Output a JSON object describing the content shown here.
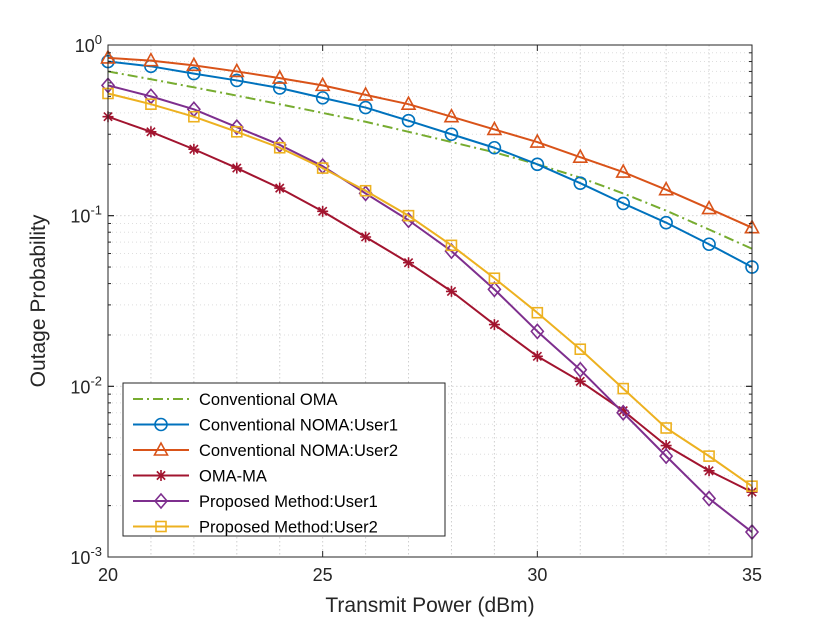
{
  "chart_data": {
    "type": "line",
    "title": "",
    "xlabel": "Transmit Power (dBm)",
    "ylabel": "Outage Probability",
    "xlim": [
      20,
      35
    ],
    "ylim": [
      0.001,
      1
    ],
    "yscale": "log",
    "grid": true,
    "legend_position": "bottom-left",
    "x_ticks": [
      20,
      25,
      30,
      35
    ],
    "x_tick_labels": [
      "20",
      "25",
      "30",
      "35"
    ],
    "y_ticks": [
      0.001,
      0.01,
      0.1,
      1
    ],
    "y_tick_labels": [
      {
        "base": "10",
        "exp": "-3"
      },
      {
        "base": "10",
        "exp": "-2"
      },
      {
        "base": "10",
        "exp": "-1"
      },
      {
        "base": "10",
        "exp": "0"
      }
    ],
    "x": [
      20,
      21,
      22,
      23,
      24,
      25,
      26,
      27,
      28,
      29,
      30,
      31,
      32,
      33,
      34,
      35
    ],
    "series": [
      {
        "name": "Conventional OMA",
        "color": "#77AC30",
        "marker": "none",
        "line": "dashdot",
        "values": [
          0.7,
          0.63,
          0.565,
          0.505,
          0.45,
          0.4,
          0.355,
          0.31,
          0.27,
          0.235,
          0.2,
          0.167,
          0.135,
          0.107,
          0.083,
          0.064
        ]
      },
      {
        "name": "Conventional NOMA:User1",
        "color": "#0072BD",
        "marker": "circle",
        "line": "solid",
        "values": [
          0.8,
          0.75,
          0.68,
          0.62,
          0.56,
          0.49,
          0.43,
          0.36,
          0.3,
          0.25,
          0.2,
          0.155,
          0.118,
          0.091,
          0.068,
          0.05
        ]
      },
      {
        "name": "Conventional NOMA:User2",
        "color": "#D95319",
        "marker": "triangle",
        "line": "solid",
        "values": [
          0.84,
          0.81,
          0.76,
          0.7,
          0.64,
          0.58,
          0.51,
          0.45,
          0.38,
          0.32,
          0.27,
          0.22,
          0.18,
          0.142,
          0.11,
          0.085
        ]
      },
      {
        "name": "OMA-MA",
        "color": "#A2142F",
        "marker": "star",
        "line": "solid",
        "values": [
          0.38,
          0.31,
          0.245,
          0.19,
          0.145,
          0.106,
          0.075,
          0.053,
          0.036,
          0.023,
          0.015,
          0.0107,
          0.0072,
          0.0045,
          0.0032,
          0.0024
        ]
      },
      {
        "name": "Proposed Method:User1",
        "color": "#7E2F8E",
        "marker": "diamond",
        "line": "solid",
        "values": [
          0.58,
          0.5,
          0.42,
          0.33,
          0.26,
          0.195,
          0.135,
          0.094,
          0.062,
          0.037,
          0.021,
          0.0125,
          0.007,
          0.0039,
          0.0022,
          0.0014
        ]
      },
      {
        "name": "Proposed Method:User2",
        "color": "#EDB120",
        "marker": "square",
        "line": "solid",
        "values": [
          0.52,
          0.45,
          0.38,
          0.31,
          0.25,
          0.19,
          0.14,
          0.1,
          0.067,
          0.043,
          0.027,
          0.0165,
          0.0097,
          0.0057,
          0.0039,
          0.0026
        ]
      }
    ]
  }
}
